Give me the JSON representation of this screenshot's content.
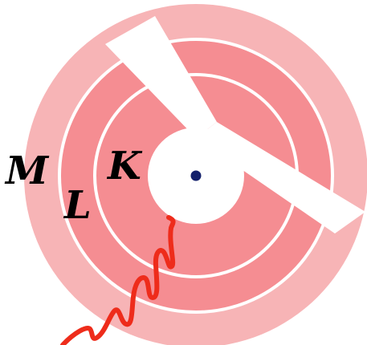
{
  "diagram": {
    "shell_labels": {
      "k": "K",
      "l": "L",
      "m": "M"
    },
    "colors": {
      "outer_shell_fill": "#f7b4b6",
      "inner_shell_fill": "#f58d92",
      "ring_stroke": "#ffffff",
      "nucleus_fill": "#13206b",
      "wave_stroke": "#ee2c1b",
      "label_color": "#000000"
    },
    "elements": [
      "k-shell-label",
      "l-shell-label",
      "m-shell-label",
      "nucleus",
      "photon-wave"
    ]
  }
}
